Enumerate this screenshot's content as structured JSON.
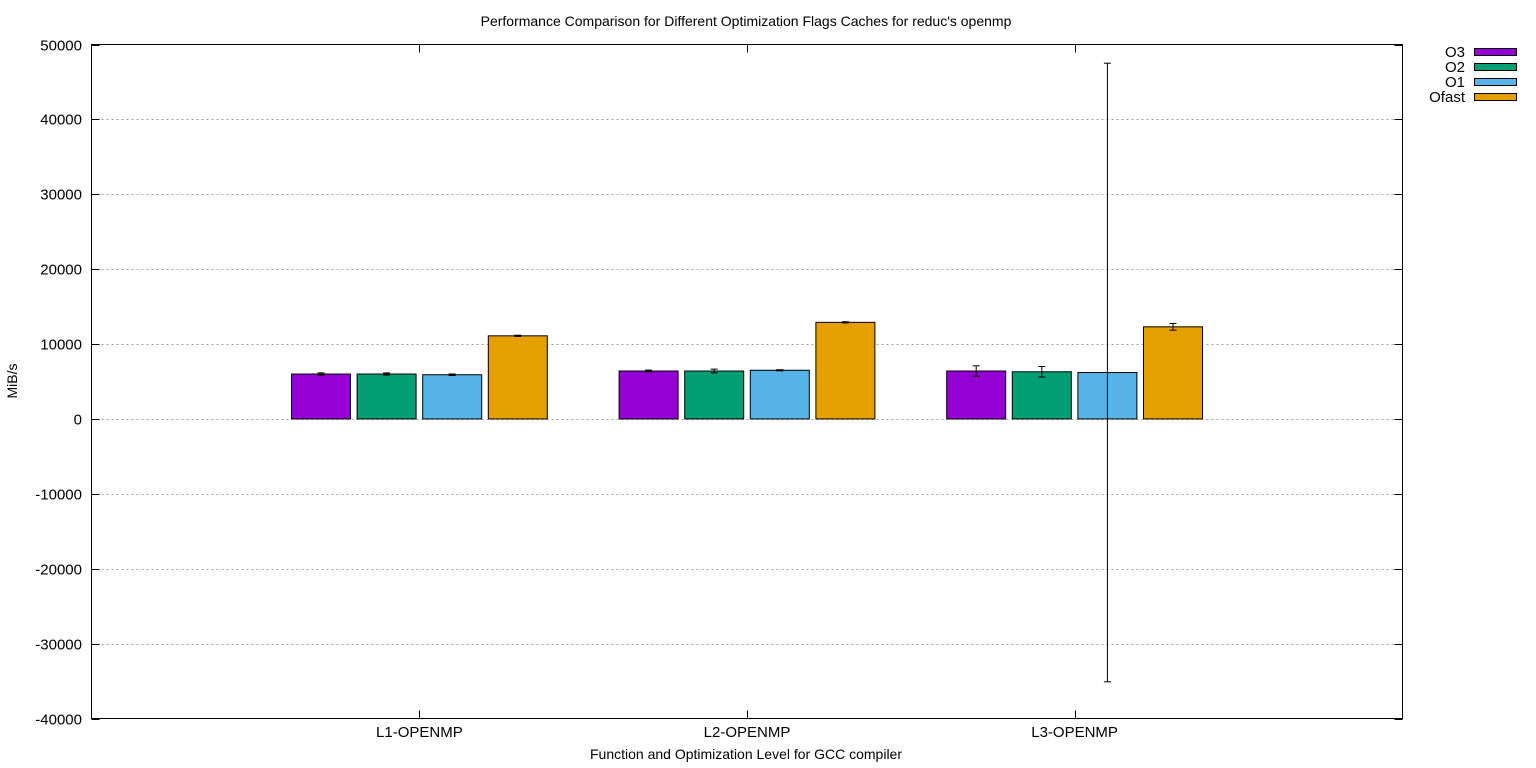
{
  "chart_data": {
    "type": "bar",
    "title": "Performance Comparison for Different Optimization Flags  Caches for reduc's openmp",
    "xlabel": "Function and Optimization Level for GCC compiler",
    "ylabel": "MiB/s",
    "ylim": [
      -40000,
      50000
    ],
    "yticks": [
      "-40000",
      "-30000",
      "-20000",
      "-10000",
      "0",
      "10000",
      "20000",
      "30000",
      "40000",
      "50000"
    ],
    "categories": [
      "L1-OPENMP",
      "L2-OPENMP",
      "L3-OPENMP"
    ],
    "grid": true,
    "legend_position": "top-right",
    "series": [
      {
        "name": "O3",
        "color": "#9400d3",
        "values": [
          6000,
          6400,
          6400
        ],
        "errors": [
          150,
          120,
          700
        ]
      },
      {
        "name": "O2",
        "color": "#009e73",
        "values": [
          6000,
          6400,
          6300
        ],
        "errors": [
          150,
          250,
          700
        ]
      },
      {
        "name": "O1",
        "color": "#56b4e9",
        "values": [
          5900,
          6500,
          6200
        ],
        "errors": [
          100,
          80,
          41300
        ]
      },
      {
        "name": "Ofast",
        "color": "#e69f00",
        "values": [
          11100,
          12900,
          12300
        ],
        "errors": [
          80,
          80,
          450
        ]
      }
    ]
  }
}
